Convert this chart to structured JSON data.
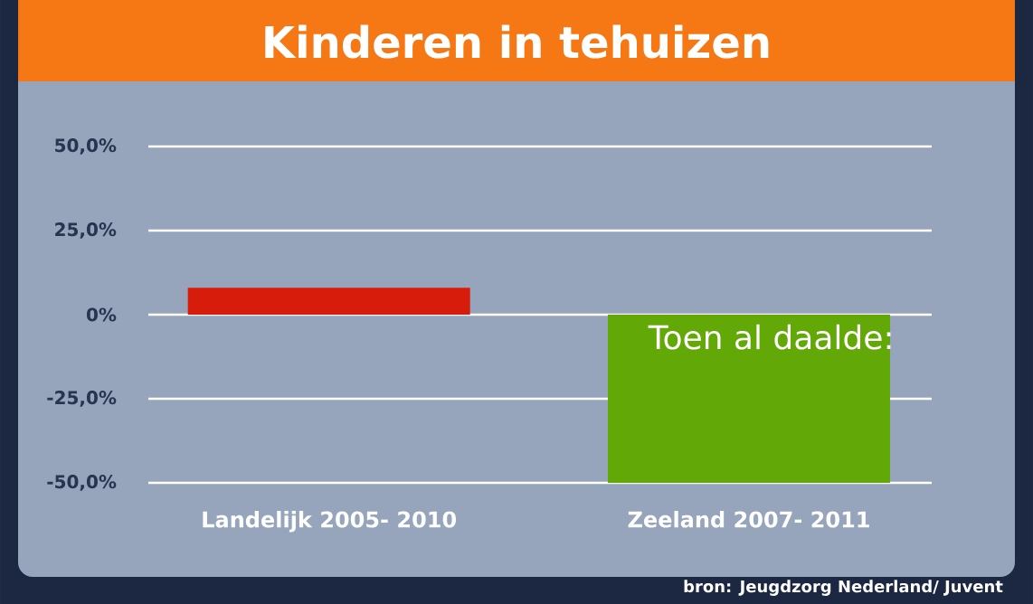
{
  "chart_data": {
    "type": "bar",
    "title": "Kinderen in tehuizen",
    "categories": [
      "Landelijk 2005- 2010",
      "Zeeland 2007- 2011"
    ],
    "values": [
      8,
      -50
    ],
    "colors": [
      "#d81c0c",
      "#62a806"
    ],
    "ylim": [
      -50,
      50
    ],
    "yticks": [
      {
        "value": -50,
        "label": "-50,0%"
      },
      {
        "value": -25,
        "label": "-25,0%"
      },
      {
        "value": 0,
        "label": "0%"
      },
      {
        "value": 25,
        "label": "25,0%"
      },
      {
        "value": 50,
        "label": "50,0%"
      }
    ],
    "grid": "y",
    "annotations": [
      "Toen al daalde:",
      "bron: Jeugdzorg Nederland/ Juvent"
    ]
  }
}
